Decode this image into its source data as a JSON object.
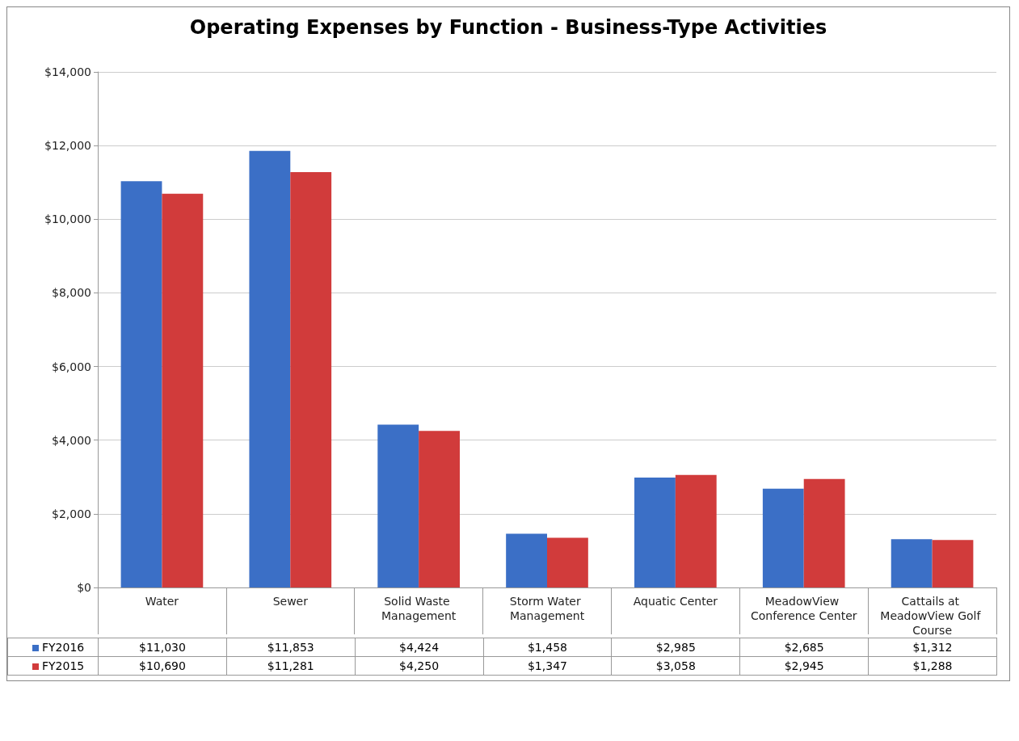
{
  "chart_data": {
    "type": "bar",
    "title": "Operating Expenses by Function - Business-Type Activities",
    "categories": [
      "Water",
      "Sewer",
      "Solid Waste Management",
      "Storm Water Management",
      "Aquatic Center",
      "MeadowView Conference Center",
      "Cattails at MeadowView Golf Course"
    ],
    "series": [
      {
        "name": "FY2016",
        "color": "#3b6fc6",
        "values": [
          11030,
          11853,
          4424,
          1458,
          2985,
          2685,
          1312
        ],
        "value_labels": [
          "$11,030",
          "$11,853",
          "$4,424",
          "$1,458",
          "$2,985",
          "$2,685",
          "$1,312"
        ]
      },
      {
        "name": "FY2015",
        "color": "#d13b3b",
        "values": [
          10690,
          11281,
          4250,
          1347,
          3058,
          2945,
          1288
        ],
        "value_labels": [
          "$10,690",
          "$11,281",
          "$4,250",
          "$1,347",
          "$3,058",
          "$2,945",
          "$1,288"
        ]
      }
    ],
    "ylim": [
      0,
      14000
    ],
    "yticks": [
      {
        "value": 0,
        "label": "$0"
      },
      {
        "value": 2000,
        "label": "$2,000"
      },
      {
        "value": 4000,
        "label": "$4,000"
      },
      {
        "value": 6000,
        "label": "$6,000"
      },
      {
        "value": 8000,
        "label": "$8,000"
      },
      {
        "value": 10000,
        "label": "$10,000"
      },
      {
        "value": 12000,
        "label": "$12,000"
      },
      {
        "value": 14000,
        "label": "$14,000"
      }
    ],
    "grid": "y",
    "legend": "bottom"
  }
}
